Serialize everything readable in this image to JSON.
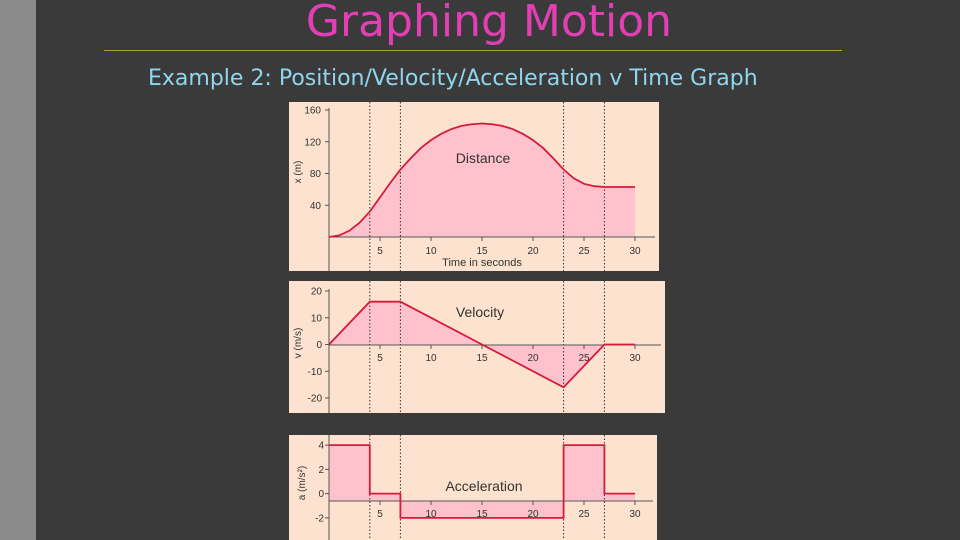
{
  "slide": {
    "title": "Graphing Motion",
    "subtitle": "Example 2:  Position/Velocity/Acceleration v Time Graph"
  },
  "colors": {
    "background": "#3a3a3a",
    "sidebar": "#8b8b8b",
    "title": "#e23fb5",
    "subtitle": "#8fd6ee",
    "rule": "#b9a030",
    "panel": "#fde3cf",
    "fill": "#ffc2cc",
    "curve": "#d61a3c"
  },
  "chart_data": [
    {
      "type": "area",
      "title": "Distance",
      "xlabel": "Time in seconds",
      "ylabel": "x (m)",
      "xlim": [
        0,
        30
      ],
      "ylim": [
        0,
        160
      ],
      "xticks": [
        "5",
        "10",
        "15",
        "20",
        "25",
        "30"
      ],
      "yticks": [
        "40",
        "80",
        "120",
        "160"
      ],
      "x": [
        0,
        1,
        2,
        3,
        4,
        5,
        6,
        7,
        8,
        9,
        10,
        11,
        12,
        13,
        14,
        15,
        16,
        17,
        18,
        19,
        20,
        21,
        22,
        23,
        24,
        25,
        26,
        27,
        28,
        29,
        30
      ],
      "values": [
        0,
        2,
        8,
        18,
        32,
        50,
        68,
        85,
        99,
        112,
        122,
        130,
        136,
        140,
        142,
        143,
        142,
        140,
        136,
        130,
        122,
        112,
        99,
        85,
        74,
        67,
        64,
        63,
        63,
        63,
        63
      ],
      "markers": [
        4,
        7,
        23,
        27
      ]
    },
    {
      "type": "area",
      "title": "Velocity",
      "xlabel": "",
      "ylabel": "v (m/s)",
      "xlim": [
        0,
        30
      ],
      "ylim": [
        -20,
        20
      ],
      "xticks": [
        "5",
        "10",
        "15",
        "20",
        "25",
        "30"
      ],
      "yticks": [
        "20",
        "10",
        "0",
        "-10",
        "-20"
      ],
      "x": [
        0,
        4,
        7,
        15,
        23,
        27,
        30
      ],
      "values": [
        0,
        16,
        16,
        0,
        -16,
        0,
        0
      ],
      "markers": [
        4,
        7,
        23,
        27
      ]
    },
    {
      "type": "area",
      "title": "Acceleration",
      "xlabel": "",
      "ylabel": "a (m/s²)",
      "xlim": [
        0,
        30
      ],
      "ylim": [
        -3,
        5
      ],
      "xticks": [
        "5",
        "10",
        "15",
        "20",
        "25",
        "30"
      ],
      "yticks": [
        "4",
        "2",
        "0",
        "-2"
      ],
      "x": [
        0,
        4,
        4,
        7,
        7,
        23,
        23,
        27,
        27,
        30
      ],
      "values": [
        4,
        4,
        0,
        0,
        -2,
        -2,
        4,
        4,
        0,
        0
      ],
      "markers": [
        4,
        7,
        23,
        27
      ]
    }
  ]
}
